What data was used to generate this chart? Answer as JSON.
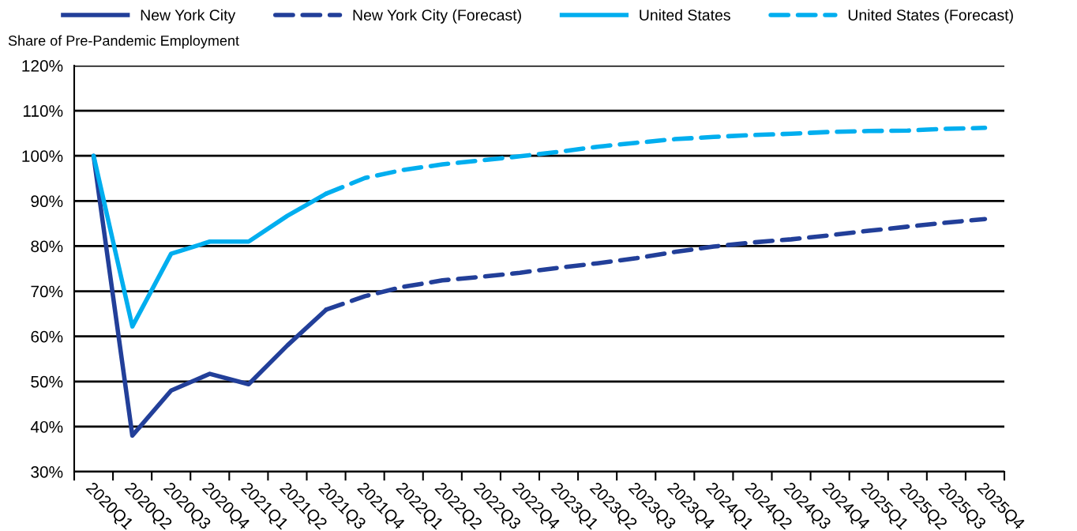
{
  "chart_data": {
    "type": "line",
    "ylabel": "Share of Pre-Pandemic Employment",
    "categories": [
      "2020Q1",
      "2020Q2",
      "2020Q3",
      "2020Q4",
      "2021Q1",
      "2021Q2",
      "2021Q3",
      "2021Q4",
      "2022Q1",
      "2022Q2",
      "2022Q3",
      "2022Q4",
      "2023Q1",
      "2023Q2",
      "2023Q3",
      "2023Q4",
      "2024Q1",
      "2024Q2",
      "2024Q3",
      "2024Q4",
      "2025Q1",
      "2025Q2",
      "2025Q3",
      "2025Q4"
    ],
    "series": [
      {
        "name": "New York City",
        "color": "#223f99",
        "line_style": "solid",
        "values": [
          100,
          38,
          48,
          51.7,
          49.4,
          58,
          65.9,
          null,
          null,
          null,
          null,
          null,
          null,
          null,
          null,
          null,
          null,
          null,
          null,
          null,
          null,
          null,
          null,
          null
        ]
      },
      {
        "name": "New York City (Forecast)",
        "color": "#223f99",
        "line_style": "dashed",
        "values": [
          null,
          null,
          null,
          null,
          null,
          null,
          65.9,
          68.9,
          71,
          72.4,
          73.2,
          74.1,
          75.2,
          76.2,
          77.3,
          78.7,
          79.9,
          80.8,
          81.5,
          82.4,
          83.4,
          84.3,
          85.2,
          86
        ]
      },
      {
        "name": "United States",
        "color": "#00aeef",
        "line_style": "solid",
        "values": [
          100,
          62.2,
          78.3,
          81,
          81,
          86.7,
          91.6,
          null,
          null,
          null,
          null,
          null,
          null,
          null,
          null,
          null,
          null,
          null,
          null,
          null,
          null,
          null,
          null,
          null
        ]
      },
      {
        "name": "United States (Forecast)",
        "color": "#00aeef",
        "line_style": "dashed",
        "values": [
          null,
          null,
          null,
          null,
          null,
          null,
          91.6,
          95.1,
          96.9,
          98.1,
          99,
          99.9,
          100.9,
          102,
          102.9,
          103.7,
          104.2,
          104.6,
          104.9,
          105.3,
          105.5,
          105.6,
          106,
          106.2
        ]
      }
    ],
    "ylim": [
      30,
      120
    ],
    "yticks": [
      {
        "value": 30,
        "label": "30%"
      },
      {
        "value": 40,
        "label": "40%"
      },
      {
        "value": 50,
        "label": "50%"
      },
      {
        "value": 60,
        "label": "60%"
      },
      {
        "value": 70,
        "label": "70%"
      },
      {
        "value": 80,
        "label": "80%"
      },
      {
        "value": 90,
        "label": "90%"
      },
      {
        "value": 100,
        "label": "100%"
      },
      {
        "value": 110,
        "label": "110%"
      },
      {
        "value": 120,
        "label": "120%"
      }
    ],
    "grid": "y",
    "legend": "top",
    "marker": "none"
  }
}
